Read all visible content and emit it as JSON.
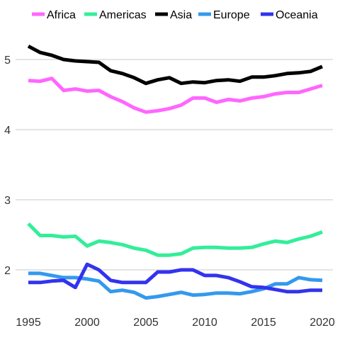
{
  "chart_data": {
    "type": "line",
    "title": "",
    "xlabel": "",
    "ylabel": "",
    "xlim": [
      1995,
      2020
    ],
    "ylim": [
      1.5,
      5.4
    ],
    "grid": "horizontal",
    "legend_position": "top",
    "x_ticks": [
      1995,
      2000,
      2005,
      2010,
      2015,
      2020
    ],
    "y_ticks": [
      2,
      3,
      4,
      5
    ],
    "x": [
      1995,
      1996,
      1997,
      1998,
      1999,
      2000,
      2001,
      2002,
      2003,
      2004,
      2005,
      2006,
      2007,
      2008,
      2009,
      2010,
      2011,
      2012,
      2013,
      2014,
      2015,
      2016,
      2017,
      2018,
      2019,
      2020
    ],
    "series": [
      {
        "name": "Africa",
        "color": "#ff66ff",
        "values": [
          4.7,
          4.69,
          4.73,
          4.56,
          4.58,
          4.55,
          4.56,
          4.47,
          4.4,
          4.31,
          4.25,
          4.27,
          4.3,
          4.35,
          4.45,
          4.45,
          4.39,
          4.43,
          4.41,
          4.45,
          4.47,
          4.51,
          4.53,
          4.53,
          4.58,
          4.63
        ]
      },
      {
        "name": "Americas",
        "color": "#33ee99",
        "values": [
          2.66,
          2.49,
          2.49,
          2.47,
          2.48,
          2.34,
          2.41,
          2.39,
          2.36,
          2.31,
          2.28,
          2.21,
          2.21,
          2.23,
          2.31,
          2.32,
          2.32,
          2.31,
          2.31,
          2.32,
          2.37,
          2.41,
          2.39,
          2.44,
          2.48,
          2.54
        ]
      },
      {
        "name": "Asia",
        "color": "#000000",
        "values": [
          5.19,
          5.1,
          5.06,
          5.0,
          4.98,
          4.97,
          4.96,
          4.84,
          4.8,
          4.74,
          4.66,
          4.71,
          4.74,
          4.66,
          4.68,
          4.67,
          4.7,
          4.71,
          4.69,
          4.75,
          4.75,
          4.77,
          4.8,
          4.81,
          4.83,
          4.9
        ]
      },
      {
        "name": "Europe",
        "color": "#3399ee",
        "values": [
          1.95,
          1.95,
          1.92,
          1.89,
          1.89,
          1.87,
          1.84,
          1.69,
          1.71,
          1.68,
          1.6,
          1.62,
          1.65,
          1.68,
          1.64,
          1.65,
          1.67,
          1.67,
          1.66,
          1.69,
          1.73,
          1.8,
          1.8,
          1.89,
          1.86,
          1.85
        ]
      },
      {
        "name": "Oceania",
        "color": "#3333ee",
        "values": [
          1.82,
          1.82,
          1.84,
          1.85,
          1.75,
          2.08,
          2.0,
          1.85,
          1.82,
          1.82,
          1.82,
          1.97,
          1.97,
          2.0,
          2.0,
          1.92,
          1.92,
          1.89,
          1.83,
          1.76,
          1.75,
          1.72,
          1.69,
          1.69,
          1.71,
          1.71
        ]
      }
    ]
  }
}
